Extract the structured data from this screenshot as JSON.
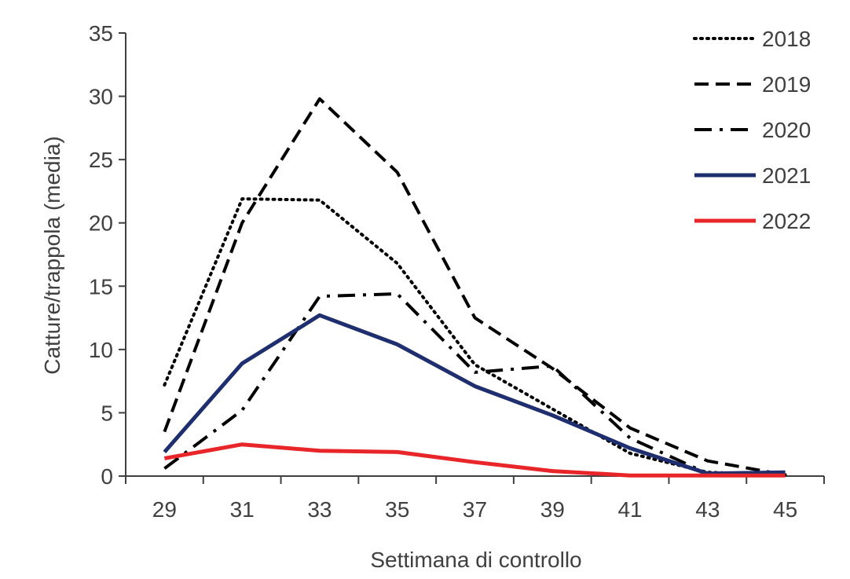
{
  "chart_data": {
    "type": "line",
    "title": "",
    "xlabel": "Settimana di controllo",
    "ylabel": "Catture/trappola (media)",
    "x": [
      29,
      31,
      33,
      35,
      37,
      39,
      41,
      43,
      45
    ],
    "xlim": [
      28,
      46
    ],
    "ylim": [
      0,
      35
    ],
    "xticks": [
      29,
      31,
      33,
      35,
      37,
      39,
      41,
      43,
      45
    ],
    "yticks": [
      0,
      5,
      10,
      15,
      20,
      25,
      30,
      35
    ],
    "grid": false,
    "legend_position": "top-right",
    "series": [
      {
        "name": "2018",
        "dash": "dotted",
        "color": "#000000",
        "values": [
          7.2,
          21.9,
          21.8,
          16.8,
          8.8,
          5.3,
          1.8,
          0.3,
          0.1
        ]
      },
      {
        "name": "2019",
        "dash": "dashed",
        "color": "#000000",
        "values": [
          3.5,
          20.0,
          29.8,
          24.0,
          12.5,
          8.5,
          3.8,
          1.2,
          0.1
        ]
      },
      {
        "name": "2020",
        "dash": "dash-dot",
        "color": "#000000",
        "values": [
          0.6,
          5.2,
          14.2,
          14.4,
          8.2,
          8.7,
          3.0,
          0.2,
          0.1
        ]
      },
      {
        "name": "2021",
        "dash": "solid",
        "color": "#1f2e6e",
        "values": [
          1.9,
          8.9,
          12.7,
          10.4,
          7.1,
          4.8,
          2.2,
          0.2,
          0.3
        ]
      },
      {
        "name": "2022",
        "dash": "solid",
        "color": "#e8262a",
        "values": [
          1.4,
          2.5,
          2.0,
          1.9,
          1.1,
          0.4,
          0.05,
          0.05,
          0.05
        ]
      }
    ]
  }
}
